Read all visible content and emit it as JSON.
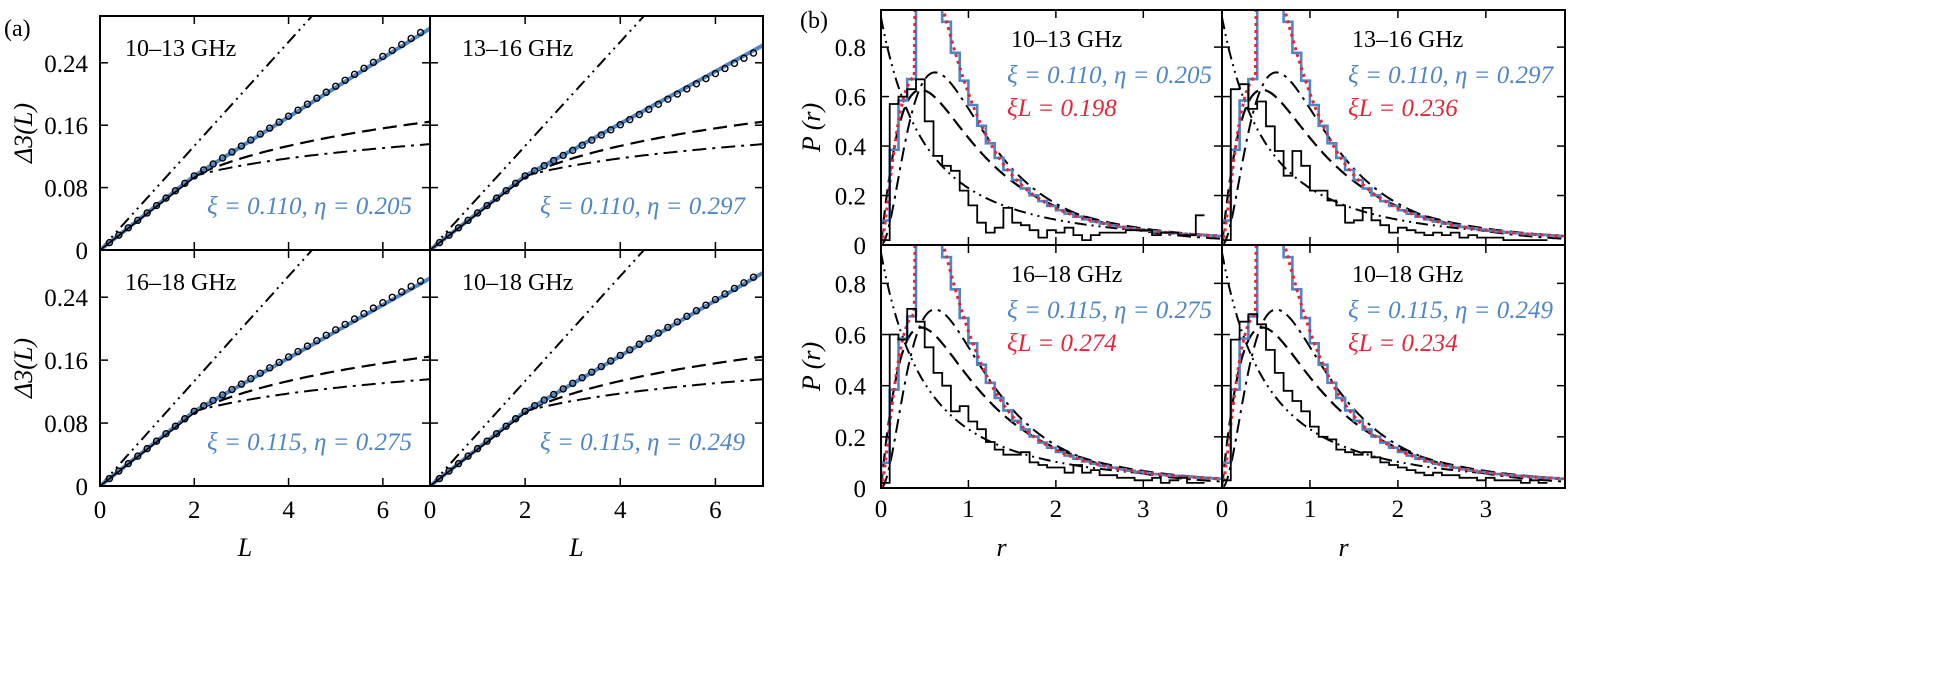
{
  "colors": {
    "blue": "#4f86c6",
    "red": "#e3263a",
    "black": "#000000"
  },
  "chart_data": [
    {
      "panel_letter": "(a)",
      "type": "line",
      "xlabel": "L",
      "ylabel": "Δ3(L)",
      "xlim": [
        0,
        7
      ],
      "ylim": [
        0,
        0.3
      ],
      "xticks": [
        "0",
        "2",
        "4",
        "6"
      ],
      "yticks": [
        "0",
        "0.08",
        "0.16",
        "0.24"
      ],
      "subplots": [
        {
          "title": "10–13 GHz",
          "params": "ξ = 0.110, η = 0.205",
          "circle_slope": 0.0383,
          "blue_slope": 0.0378
        },
        {
          "title": "13–16 GHz",
          "params": "ξ = 0.110, η = 0.297",
          "circle_slope": 0.0328,
          "blue_slope": 0.0335
        },
        {
          "title": "16–18 GHz",
          "params": "ξ = 0.115, η = 0.275",
          "circle_slope": 0.0345,
          "blue_slope": 0.0338
        },
        {
          "title": "10–18 GHz",
          "params": "ξ = 0.115, η = 0.249",
          "circle_slope": 0.0355,
          "blue_slope": 0.0352
        }
      ],
      "reference_curves": [
        {
          "style": "dash-dot-dot",
          "slope_per_L": 0.0667
        },
        {
          "style": "dashed",
          "shape": "ln(L)"
        },
        {
          "style": "dash-dot",
          "shape": "ln(L)"
        }
      ]
    },
    {
      "panel_letter": "(b)",
      "type": "line",
      "xlabel": "r",
      "ylabel": "P (r)",
      "xlim": [
        0,
        3.9
      ],
      "ylim": [
        0,
        0.95
      ],
      "xticks": [
        "0",
        "1",
        "2",
        "3"
      ],
      "yticks": [
        "0",
        "0.2",
        "0.4",
        "0.6",
        "0.8"
      ],
      "subplots": [
        {
          "title": "10–13 GHz",
          "params": "ξ = 0.110, η = 0.205",
          "xi_L_label": "ξL = 0.198",
          "experiment_histogram": [
            0.02,
            0.57,
            0.6,
            0.63,
            0.67,
            0.5,
            0.36,
            0.32,
            0.3,
            0.22,
            0.16,
            0.09,
            0.05,
            0.07,
            0.15,
            0.09,
            0.08,
            0.06,
            0.03,
            0.06,
            0.05,
            0.07,
            0.04,
            0.02,
            0.04,
            0.05,
            0.05,
            0.05,
            0.06,
            0.06,
            0.06,
            0.04,
            0.05,
            0.05,
            0.04,
            0.04,
            0.12
          ]
        },
        {
          "title": "13–16 GHz",
          "params": "ξ = 0.110, η = 0.297",
          "xi_L_label": "ξL = 0.236",
          "experiment_histogram": [
            0.02,
            0.63,
            0.65,
            0.55,
            0.58,
            0.48,
            0.38,
            0.28,
            0.38,
            0.32,
            0.22,
            0.22,
            0.18,
            0.16,
            0.09,
            0.1,
            0.15,
            0.1,
            0.08,
            0.05,
            0.07,
            0.06,
            0.05,
            0.04,
            0.05,
            0.04,
            0.05,
            0.03,
            0.04,
            0.03,
            0.03,
            0.03,
            0.02,
            0.02,
            0.02,
            0.02,
            0.02
          ]
        },
        {
          "title": "16–18 GHz",
          "params": "ξ = 0.115, η = 0.275",
          "xi_L_label": "ξL = 0.274",
          "experiment_histogram": [
            0.02,
            0.6,
            0.58,
            0.7,
            0.65,
            0.55,
            0.45,
            0.4,
            0.3,
            0.32,
            0.26,
            0.23,
            0.18,
            0.15,
            0.13,
            0.13,
            0.14,
            0.1,
            0.09,
            0.08,
            0.08,
            0.06,
            0.09,
            0.06,
            0.07,
            0.05,
            0.05,
            0.04,
            0.04,
            0.03,
            0.03,
            0.04,
            0.02,
            0.03,
            0.04,
            0.02,
            0.02
          ]
        },
        {
          "title": "10–18 GHz",
          "params": "ξ = 0.115, η = 0.249",
          "xi_L_label": "ξL = 0.234",
          "experiment_histogram": [
            0.03,
            0.58,
            0.65,
            0.68,
            0.64,
            0.54,
            0.45,
            0.38,
            0.34,
            0.3,
            0.24,
            0.2,
            0.19,
            0.15,
            0.14,
            0.13,
            0.14,
            0.12,
            0.1,
            0.09,
            0.08,
            0.07,
            0.06,
            0.05,
            0.06,
            0.05,
            0.05,
            0.04,
            0.04,
            0.03,
            0.04,
            0.03,
            0.03,
            0.03,
            0.02,
            0.03,
            0.02
          ]
        }
      ],
      "histogram_bin_width": 0.1,
      "reference_curves": [
        {
          "style": "dash-dot-dot",
          "shape": "Poisson (1/(1+r)^2)"
        },
        {
          "style": "dashed",
          "shape": "GOE-like"
        },
        {
          "style": "dash-dot",
          "shape": "GOE-like, wider"
        }
      ]
    }
  ]
}
